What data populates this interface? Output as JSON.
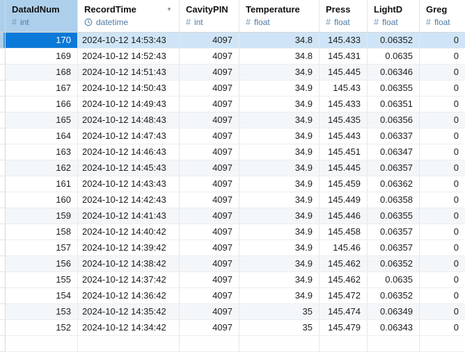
{
  "table": {
    "columns": [
      {
        "name": "DataIdNum",
        "type": "int",
        "icon": "numeric-type-icon",
        "align": "right"
      },
      {
        "name": "RecordTime",
        "type": "datetime",
        "icon": "datetime-type-icon",
        "align": "left",
        "sort": "desc"
      },
      {
        "name": "CavityPIN",
        "type": "int",
        "icon": "numeric-type-icon",
        "align": "right"
      },
      {
        "name": "Temperature",
        "type": "float",
        "icon": "numeric-type-icon",
        "align": "right"
      },
      {
        "name": "Press",
        "type": "float",
        "icon": "numeric-type-icon",
        "align": "right"
      },
      {
        "name": "LightD",
        "type": "float",
        "icon": "numeric-type-icon",
        "align": "right"
      },
      {
        "name": "Greg",
        "type": "float",
        "icon": "numeric-type-icon",
        "align": "right"
      }
    ],
    "rows": [
      [
        "170",
        "2024-10-12 14:53:43",
        "4097",
        "34.8",
        "145.433",
        "0.06352",
        "0"
      ],
      [
        "169",
        "2024-10-12 14:52:43",
        "4097",
        "34.8",
        "145.431",
        "0.0635",
        "0"
      ],
      [
        "168",
        "2024-10-12 14:51:43",
        "4097",
        "34.9",
        "145.445",
        "0.06346",
        "0"
      ],
      [
        "167",
        "2024-10-12 14:50:43",
        "4097",
        "34.9",
        "145.43",
        "0.06355",
        "0"
      ],
      [
        "166",
        "2024-10-12 14:49:43",
        "4097",
        "34.9",
        "145.433",
        "0.06351",
        "0"
      ],
      [
        "165",
        "2024-10-12 14:48:43",
        "4097",
        "34.9",
        "145.435",
        "0.06356",
        "0"
      ],
      [
        "164",
        "2024-10-12 14:47:43",
        "4097",
        "34.9",
        "145.443",
        "0.06337",
        "0"
      ],
      [
        "163",
        "2024-10-12 14:46:43",
        "4097",
        "34.9",
        "145.451",
        "0.06347",
        "0"
      ],
      [
        "162",
        "2024-10-12 14:45:43",
        "4097",
        "34.9",
        "145.445",
        "0.06357",
        "0"
      ],
      [
        "161",
        "2024-10-12 14:43:43",
        "4097",
        "34.9",
        "145.459",
        "0.06362",
        "0"
      ],
      [
        "160",
        "2024-10-12 14:42:43",
        "4097",
        "34.9",
        "145.449",
        "0.06358",
        "0"
      ],
      [
        "159",
        "2024-10-12 14:41:43",
        "4097",
        "34.9",
        "145.446",
        "0.06355",
        "0"
      ],
      [
        "158",
        "2024-10-12 14:40:42",
        "4097",
        "34.9",
        "145.458",
        "0.06357",
        "0"
      ],
      [
        "157",
        "2024-10-12 14:39:42",
        "4097",
        "34.9",
        "145.46",
        "0.06357",
        "0"
      ],
      [
        "156",
        "2024-10-12 14:38:42",
        "4097",
        "34.9",
        "145.462",
        "0.06352",
        "0"
      ],
      [
        "155",
        "2024-10-12 14:37:42",
        "4097",
        "34.9",
        "145.462",
        "0.0635",
        "0"
      ],
      [
        "154",
        "2024-10-12 14:36:42",
        "4097",
        "34.9",
        "145.472",
        "0.06352",
        "0"
      ],
      [
        "153",
        "2024-10-12 14:35:42",
        "4097",
        "35",
        "145.474",
        "0.06349",
        "0"
      ],
      [
        "152",
        "2024-10-12 14:34:42",
        "4097",
        "35",
        "145.479",
        "0.06343",
        "0"
      ]
    ]
  },
  "selection": {
    "row_index": 0,
    "column_index": 0
  },
  "icons": {
    "sort_desc": "▼",
    "numeric": "#"
  },
  "colors": {
    "selected_cell": "#0b79d7",
    "selected_row": "#cfe5f7",
    "selected_header": "#aecfec",
    "row_stripe": "#f4f7fa",
    "accent_stripe": "#3f93dc",
    "type_text": "#4d7aa4",
    "header_text": "#111111",
    "cell_text": "#1c1c1c"
  }
}
